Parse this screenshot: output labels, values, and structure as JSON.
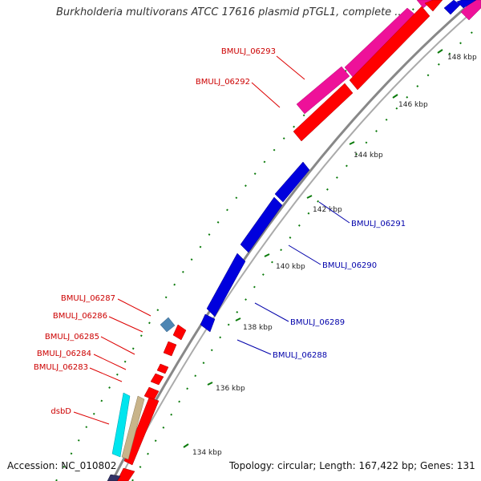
{
  "title": "Burkholderia multivorans ATCC 17616 plasmid pTGL1, complete ...",
  "footer": {
    "accession": "Accession: NC_010802",
    "topology": "Topology: circular; Length: 167,422 bp; Genes: 131"
  },
  "colors": {
    "backbone": "#888888",
    "tick": "#0a7a0a",
    "red_gene": "#ff0000",
    "blue_gene": "#0000dd",
    "pink_gene": "#ee1199",
    "cyan_gene": "#00e5ee",
    "tan_gene": "#c8b48a",
    "steel_gene": "#4f86b3",
    "red_label": "#cc0000",
    "blue_label": "#0000aa"
  },
  "kbp_labels": [
    "134 kbp",
    "136 kbp",
    "138 kbp",
    "140 kbp",
    "142 kbp",
    "144 kbp",
    "146 kbp",
    "148 kbp"
  ],
  "gene_labels_left": [
    "BMULJ_06293",
    "BMULJ_06292",
    "BMULJ_06287",
    "BMULJ_06286",
    "BMULJ_06285",
    "BMULJ_06284",
    "BMULJ_06283",
    "dsbD"
  ],
  "gene_labels_right": [
    "BMULJ_06291",
    "BMULJ_06290",
    "BMULJ_06289",
    "BMULJ_06288"
  ]
}
